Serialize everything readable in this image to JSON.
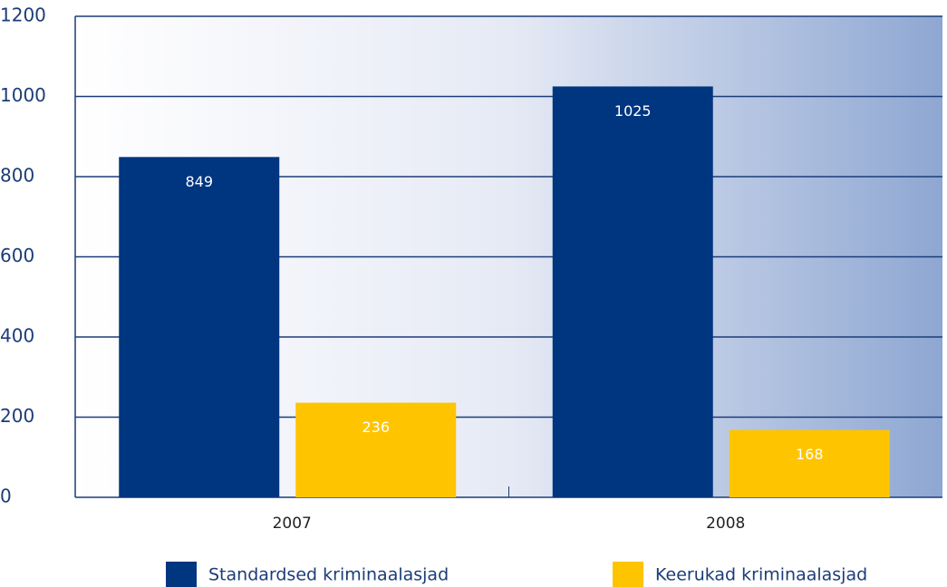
{
  "chart_data": {
    "type": "bar",
    "categories": [
      "2007",
      "2008"
    ],
    "series": [
      {
        "name": "Standardsed kriminaalasjad",
        "color": "#003580",
        "values": [
          849,
          1025
        ]
      },
      {
        "name": "Keerukad kriminaalasjad",
        "color": "#ffc400",
        "values": [
          236,
          168
        ]
      }
    ],
    "ylim": [
      0,
      1200
    ],
    "yticks": [
      0,
      200,
      400,
      600,
      800,
      1000,
      1200
    ],
    "grid": true,
    "legend": "bottom"
  }
}
